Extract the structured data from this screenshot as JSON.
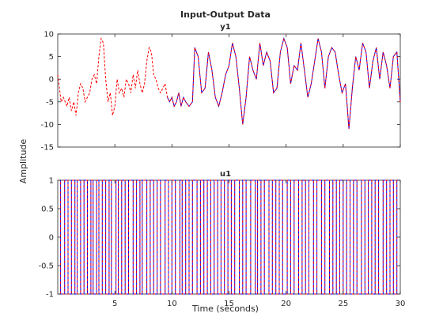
{
  "figure": {
    "title": "Input-Output Data",
    "xlabel": "Time (seconds)",
    "ylabel": "Amplitude"
  },
  "colors": {
    "series_a": "#0000ff",
    "series_b": "#ff0000",
    "axes": "#262626",
    "background": "#ffffff"
  },
  "chart_data": [
    {
      "type": "line",
      "title": "y1",
      "xlim": [
        0,
        30
      ],
      "ylim": [
        -15,
        10
      ],
      "x_ticks": [
        5,
        10,
        15,
        20,
        25,
        30
      ],
      "y_ticks": [
        -15,
        -10,
        -5,
        0,
        5,
        10
      ],
      "grid": false,
      "series": [
        {
          "style": "dashed",
          "color": "#ff0000",
          "x": [
            0,
            0.3,
            0.5,
            0.8,
            1,
            1.2,
            1.4,
            1.6,
            1.8,
            2.0,
            2.2,
            2.4,
            2.6,
            2.8,
            3.0,
            3.2,
            3.4,
            3.6,
            3.8,
            4.0,
            4.2,
            4.4,
            4.6,
            4.8,
            5.0,
            5.2,
            5.4,
            5.6,
            5.8,
            6.0,
            6.2,
            6.4,
            6.6,
            6.8,
            7.0,
            7.2,
            7.4,
            7.6,
            7.8,
            8.0,
            8.2,
            8.4,
            8.6,
            8.8,
            9.0,
            9.2,
            9.4,
            9.6,
            9.8,
            10.0,
            10.2,
            10.4,
            10.6,
            10.8,
            11.0,
            11.2,
            11.5,
            11.8,
            12.0,
            12.3,
            12.6,
            12.9,
            13.2,
            13.5,
            13.8,
            14.1,
            14.4,
            14.7,
            15.0,
            15.3,
            15.6,
            15.9,
            16.2,
            16.5,
            16.8,
            17.1,
            17.4,
            17.7,
            18.0,
            18.3,
            18.6,
            18.9,
            19.2,
            19.5,
            19.8,
            20.1,
            20.4,
            20.7,
            21.0,
            21.3,
            21.6,
            21.9,
            22.2,
            22.5,
            22.8,
            23.1,
            23.4,
            23.7,
            24.0,
            24.3,
            24.6,
            24.9,
            25.2,
            25.5,
            25.8,
            26.1,
            26.4,
            26.7,
            27.0,
            27.3,
            27.6,
            27.9,
            28.2,
            28.5,
            28.8,
            29.1,
            29.4,
            29.7,
            30.0
          ],
          "y": [
            1,
            -5,
            -4,
            -6,
            -4,
            -7,
            -5,
            -8,
            -3,
            -1,
            -2,
            -5,
            -4,
            -3,
            0,
            1,
            -1,
            5,
            9,
            8,
            0,
            -5,
            -3,
            -8,
            -6,
            0,
            -3,
            -2,
            -4,
            0,
            -1,
            -3,
            1,
            -2,
            2,
            -1,
            -3,
            -1,
            4,
            7,
            6,
            1,
            0,
            -2,
            -3,
            -2,
            -1,
            -4,
            -5,
            -4,
            -6,
            -5,
            -3,
            -6,
            -4,
            -5,
            -6,
            -5,
            7,
            5,
            -3,
            -2,
            6,
            2,
            -4,
            -6,
            -3,
            1,
            3,
            8,
            5,
            -2,
            -10,
            -4,
            5,
            2,
            0,
            8,
            3,
            6,
            4,
            -3,
            -2,
            6,
            9,
            7,
            -1,
            3,
            2,
            8,
            2,
            -4,
            -1,
            4,
            9,
            6,
            -2,
            5,
            7,
            6,
            1,
            -3,
            -1,
            -11,
            -2,
            5,
            2,
            8,
            6,
            -2,
            4,
            7,
            0,
            6,
            3,
            -2,
            5,
            6,
            -5
          ],
          "visible_until": 9.6
        },
        {
          "style": "solid",
          "color": "#0000ff",
          "start": 9.6
        }
      ]
    },
    {
      "type": "line",
      "title": "u1",
      "xlim": [
        0,
        30
      ],
      "ylim": [
        -1,
        1
      ],
      "x_ticks": [
        5,
        10,
        15,
        20,
        25,
        30
      ],
      "y_ticks": [
        -1,
        -0.5,
        0,
        0.5,
        1
      ],
      "y_tick_labels": [
        "-1",
        "-0.5",
        "0",
        "0.5",
        "1"
      ],
      "grid": false,
      "series": [
        {
          "style": "dashed",
          "color": "#ff0000",
          "switch_times": [
            0.25,
            0.6,
            0.9,
            1.2,
            1.5,
            1.7,
            2.0,
            2.3,
            2.6,
            2.9,
            3.1,
            3.4,
            3.6,
            3.9,
            4.2,
            4.5,
            4.7,
            5.1,
            5.3,
            5.6,
            5.9,
            6.2,
            6.6,
            6.9,
            7.2,
            7.4,
            7.8,
            8.1,
            8.4,
            8.7,
            9.0,
            9.4,
            9.7,
            10.0,
            10.3,
            10.7,
            10.9,
            11.2,
            11.5,
            11.8,
            12.2,
            12.5,
            12.8,
            13.1,
            13.4,
            13.7,
            14.0,
            14.3,
            14.6,
            14.9,
            15.2,
            15.5,
            15.9,
            16.2,
            16.5,
            16.9,
            17.3,
            17.5,
            17.8,
            18.1,
            18.5,
            18.8,
            19.1,
            19.4,
            19.7,
            20.1,
            20.4,
            20.7,
            21.1,
            21.4,
            21.7,
            22.0,
            22.4,
            22.7,
            23.1,
            23.4,
            23.8,
            24.1,
            24.4,
            24.7,
            25.0,
            25.3,
            25.6,
            25.9,
            26.2,
            26.6,
            26.9,
            27.2,
            27.5,
            27.8,
            28.1,
            28.5,
            28.8,
            29.1,
            29.4,
            29.7
          ]
        },
        {
          "style": "solid",
          "color": "#0000ff"
        }
      ]
    }
  ]
}
